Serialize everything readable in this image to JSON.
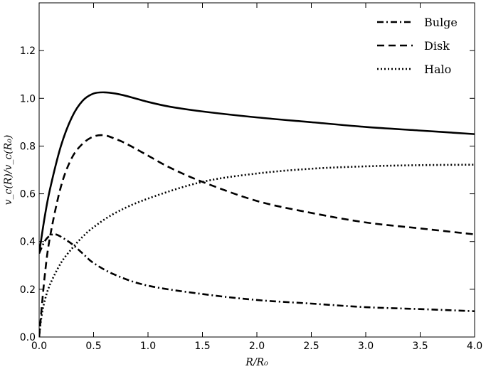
{
  "chart_data": {
    "type": "line",
    "xlabel": "R/R₀",
    "ylabel": "v_c(R)/v_c(R₀)",
    "xlim": [
      0,
      4
    ],
    "ylim": [
      0,
      1.4
    ],
    "xticks": [
      "0.0",
      "0.5",
      "1.0",
      "1.5",
      "2.0",
      "2.5",
      "3.0",
      "3.5",
      "4.0"
    ],
    "yticks": [
      "0.0",
      "0.2",
      "0.4",
      "0.6",
      "0.8",
      "1.0",
      "1.2"
    ],
    "grid": false,
    "legend_position": "top-right",
    "series": [
      {
        "style": "solid",
        "x": [
          0.0,
          0.05,
          0.1,
          0.2,
          0.3,
          0.4,
          0.5,
          0.6,
          0.7,
          0.8,
          1.0,
          1.2,
          1.5,
          2.0,
          2.5,
          3.0,
          3.5,
          4.0
        ],
        "values": [
          0.35,
          0.5,
          0.62,
          0.8,
          0.92,
          0.99,
          1.02,
          1.025,
          1.02,
          1.01,
          0.985,
          0.965,
          0.945,
          0.92,
          0.9,
          0.88,
          0.865,
          0.85
        ]
      },
      {
        "name": "Bulge",
        "style": "dashdot",
        "x": [
          0.0,
          0.05,
          0.1,
          0.15,
          0.2,
          0.3,
          0.4,
          0.5,
          0.7,
          1.0,
          1.5,
          2.0,
          2.5,
          3.0,
          3.5,
          4.0
        ],
        "values": [
          0.35,
          0.4,
          0.425,
          0.43,
          0.42,
          0.39,
          0.35,
          0.31,
          0.26,
          0.215,
          0.18,
          0.155,
          0.14,
          0.125,
          0.117,
          0.108
        ]
      },
      {
        "name": "Disk",
        "style": "dashed",
        "x": [
          0.0,
          0.05,
          0.1,
          0.2,
          0.3,
          0.4,
          0.5,
          0.6,
          0.7,
          0.8,
          1.0,
          1.2,
          1.5,
          2.0,
          2.5,
          3.0,
          3.5,
          4.0
        ],
        "values": [
          0.0,
          0.25,
          0.42,
          0.63,
          0.75,
          0.81,
          0.84,
          0.845,
          0.83,
          0.81,
          0.76,
          0.71,
          0.65,
          0.57,
          0.52,
          0.48,
          0.455,
          0.43
        ]
      },
      {
        "name": "Halo",
        "style": "dotted",
        "x": [
          0.0,
          0.02,
          0.05,
          0.1,
          0.2,
          0.3,
          0.4,
          0.5,
          0.7,
          1.0,
          1.5,
          2.0,
          2.5,
          3.0,
          3.5,
          4.0
        ],
        "values": [
          0.0,
          0.08,
          0.15,
          0.22,
          0.31,
          0.37,
          0.42,
          0.46,
          0.52,
          0.58,
          0.65,
          0.685,
          0.705,
          0.715,
          0.72,
          0.722
        ]
      }
    ]
  }
}
